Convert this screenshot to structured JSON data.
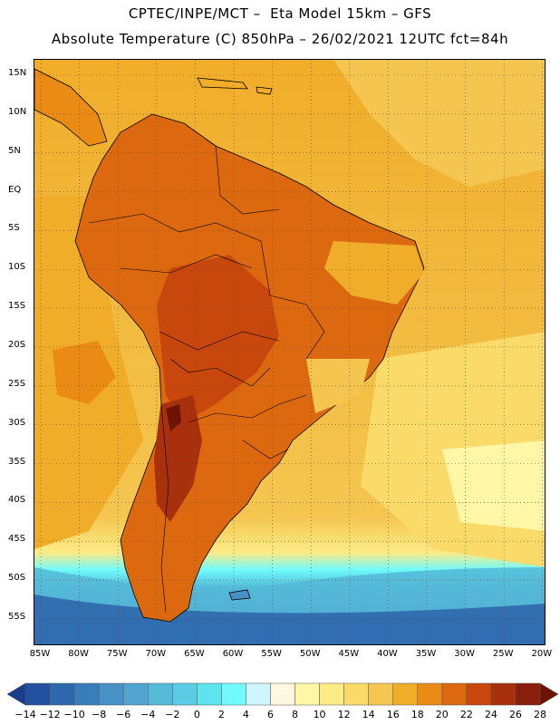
{
  "title_line1": "CPTEC/INPE/MCT –  Eta Model 15km – GFS",
  "title_line2": "Absolute Temperature (C) 850hPa – 26/02/2021 12UTC fct=84h",
  "lat_labels": [
    "15N",
    "10N",
    "5N",
    "EQ",
    "5S",
    "10S",
    "15S",
    "20S",
    "25S",
    "30S",
    "35S",
    "40S",
    "45S",
    "50S",
    "55S"
  ],
  "lon_labels": [
    "85W",
    "80W",
    "75W",
    "70W",
    "65W",
    "60W",
    "55W",
    "50W",
    "45W",
    "40W",
    "35W",
    "30W",
    "25W",
    "20W"
  ],
  "colorbar": {
    "labels": [
      "-14",
      "-12",
      "-10",
      "-8",
      "-6",
      "-4",
      "-2",
      "0",
      "2",
      "4",
      "6",
      "8",
      "10",
      "12",
      "14",
      "16",
      "18",
      "20",
      "22",
      "24",
      "26",
      "28"
    ],
    "colors": [
      "#1a3c8e",
      "#23509e",
      "#2d67ad",
      "#3a7dbb",
      "#4791c6",
      "#51a4cf",
      "#55b9d8",
      "#59cde3",
      "#5de4ee",
      "#6ffbfb",
      "#cdf5fb",
      "#fff8e0",
      "#fff6a6",
      "#fdeb86",
      "#fadb6a",
      "#f4c650",
      "#f0ad2a",
      "#e98b15",
      "#dc6910",
      "#c8470d",
      "#a8300c",
      "#8a1e0c",
      "#6e1205"
    ]
  },
  "colors": {
    "ocean_warm": "#f0ad2a",
    "ocean_mid": "#f4c650",
    "ocean_light": "#fadb6a",
    "land_hot": "#dc6910",
    "land_hotter": "#c8470d",
    "land_hottest": "#8a1e0c",
    "cold_band": "#4791c6",
    "cold_deep": "#2d67ad"
  }
}
